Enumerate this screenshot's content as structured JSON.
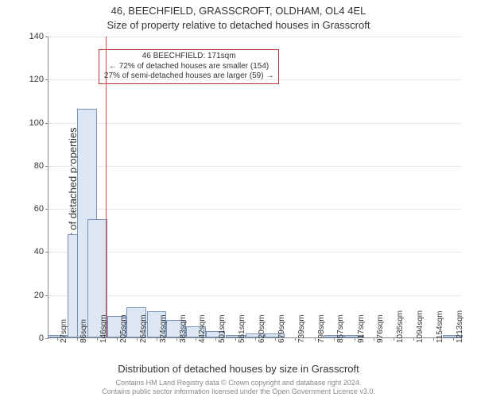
{
  "title_line1": "46, BEECHFIELD, GRASSCROFT, OLDHAM, OL4 4EL",
  "title_line2": "Size of property relative to detached houses in Grasscroft",
  "y_axis_title": "Number of detached properties",
  "x_axis_title": "Distribution of detached houses by size in Grasscroft",
  "footer_line1": "Contains HM Land Registry data © Crown copyright and database right 2024.",
  "footer_line2": "Contains public sector information licensed under the Open Government Licence v3.0.",
  "chart": {
    "type": "histogram",
    "background_color": "#ffffff",
    "grid_color": "#e8e8e8",
    "axis_color": "#888888",
    "bar_fill": "#dde6f3",
    "bar_border": "#7a91b8",
    "marker_color": "#dd3333",
    "marker_x_value": 171,
    "bar_width_ratio": 1.0,
    "ylim": [
      0,
      140
    ],
    "ytick_step": 20,
    "y_ticks": [
      0,
      20,
      40,
      60,
      80,
      100,
      120,
      140
    ],
    "x_min": 0,
    "x_max": 1240,
    "x_tick_step": 59,
    "x_ticks": [
      {
        "pos": 27,
        "label": "27sqm"
      },
      {
        "pos": 86,
        "label": "86sqm"
      },
      {
        "pos": 146,
        "label": "146sqm"
      },
      {
        "pos": 205,
        "label": "205sqm"
      },
      {
        "pos": 264,
        "label": "264sqm"
      },
      {
        "pos": 324,
        "label": "324sqm"
      },
      {
        "pos": 383,
        "label": "383sqm"
      },
      {
        "pos": 442,
        "label": "442sqm"
      },
      {
        "pos": 501,
        "label": "501sqm"
      },
      {
        "pos": 561,
        "label": "561sqm"
      },
      {
        "pos": 620,
        "label": "620sqm"
      },
      {
        "pos": 679,
        "label": "679sqm"
      },
      {
        "pos": 739,
        "label": "739sqm"
      },
      {
        "pos": 798,
        "label": "798sqm"
      },
      {
        "pos": 857,
        "label": "857sqm"
      },
      {
        "pos": 917,
        "label": "917sqm"
      },
      {
        "pos": 976,
        "label": "976sqm"
      },
      {
        "pos": 1035,
        "label": "1035sqm"
      },
      {
        "pos": 1094,
        "label": "1094sqm"
      },
      {
        "pos": 1154,
        "label": "1154sqm"
      },
      {
        "pos": 1213,
        "label": "1213sqm"
      }
    ],
    "bars": [
      {
        "center": 27,
        "value": 1
      },
      {
        "center": 86,
        "value": 48
      },
      {
        "center": 116,
        "value": 106
      },
      {
        "center": 146,
        "value": 55
      },
      {
        "center": 205,
        "value": 10
      },
      {
        "center": 264,
        "value": 14
      },
      {
        "center": 324,
        "value": 12
      },
      {
        "center": 383,
        "value": 8
      },
      {
        "center": 442,
        "value": 5
      },
      {
        "center": 501,
        "value": 3
      },
      {
        "center": 561,
        "value": 1
      },
      {
        "center": 620,
        "value": 2
      },
      {
        "center": 679,
        "value": 2
      },
      {
        "center": 739,
        "value": 0
      },
      {
        "center": 798,
        "value": 0
      },
      {
        "center": 857,
        "value": 1
      },
      {
        "center": 917,
        "value": 1
      },
      {
        "center": 976,
        "value": 0
      },
      {
        "center": 1035,
        "value": 0
      },
      {
        "center": 1094,
        "value": 0
      },
      {
        "center": 1154,
        "value": 0
      },
      {
        "center": 1213,
        "value": 1
      }
    ],
    "annotation": {
      "line1": "46 BEECHFIELD: 171sqm",
      "line2": "← 72% of detached houses are smaller (154)",
      "line3": "27% of semi-detached houses are larger (59) →",
      "border_color": "#bb3333",
      "fontsize": 10,
      "left_x_value": 150,
      "top_y_value": 134
    }
  }
}
